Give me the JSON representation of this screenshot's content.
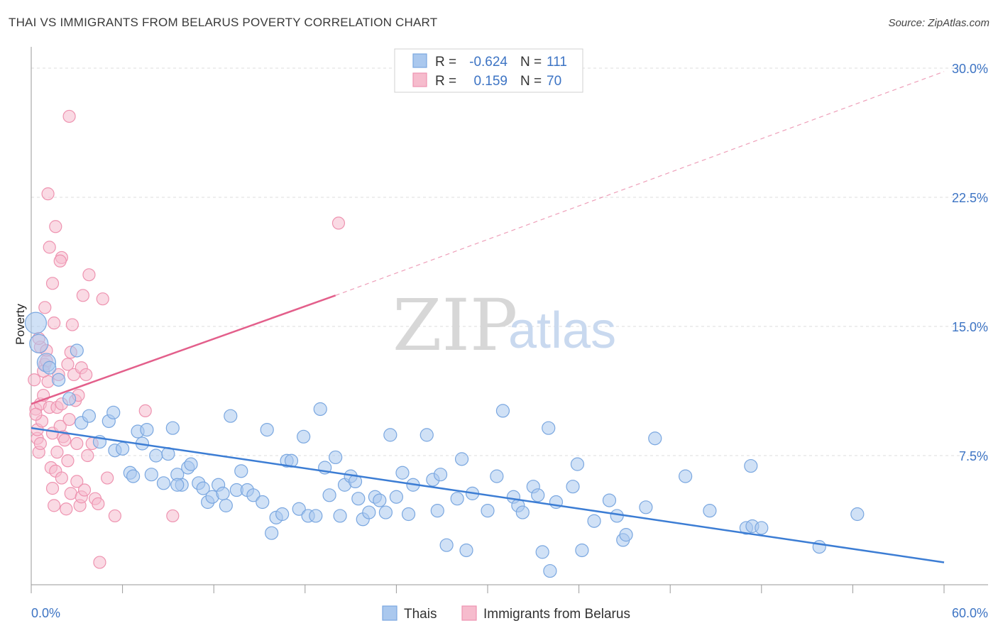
{
  "title": "THAI VS IMMIGRANTS FROM BELARUS POVERTY CORRELATION CHART",
  "source": "Source: ZipAtlas.com",
  "watermark": {
    "zip": "ZIP",
    "atlas": "atlas"
  },
  "colors": {
    "thais_fill": "#aac8ee",
    "thais_stroke": "#7aa7e0",
    "thais_line": "#3c7dd4",
    "belarus_fill": "#f6bccd",
    "belarus_stroke": "#ee93b0",
    "belarus_line": "#e35f8b",
    "tick_text": "#3d74c4",
    "grid": "#dcdcdc",
    "axis": "#9a9a9a"
  },
  "stats": [
    {
      "r_label": "R =",
      "r_value": "-0.624",
      "n_label": "N =",
      "n_value": "111"
    },
    {
      "r_label": "R =",
      "r_value": "0.159",
      "n_label": "N =",
      "n_value": "70"
    }
  ],
  "chart_data": {
    "type": "scatter",
    "xlabel": "",
    "ylabel": "Poverty",
    "xlim": [
      0,
      60
    ],
    "ylim": [
      0,
      30
    ],
    "x_tick_labels": [
      "0.0%",
      "60.0%"
    ],
    "y_ticks": [
      7.5,
      15.0,
      22.5,
      30.0
    ],
    "y_tick_labels": [
      "7.5%",
      "15.0%",
      "22.5%",
      "30.0%"
    ],
    "grid": "horizontal dashed",
    "legend_position": "bottom-center",
    "series": [
      {
        "name": "Thais",
        "trend": {
          "x0": 0,
          "y0": 9.1,
          "x1": 60,
          "y1": 1.3,
          "extrapolated_from": null
        },
        "points": [
          [
            0.3,
            15.2
          ],
          [
            0.5,
            14.0
          ],
          [
            1.0,
            12.9
          ],
          [
            1.2,
            12.6
          ],
          [
            1.8,
            11.9
          ],
          [
            3.0,
            13.6
          ],
          [
            2.5,
            10.8
          ],
          [
            3.3,
            9.4
          ],
          [
            3.8,
            9.8
          ],
          [
            4.5,
            8.3
          ],
          [
            5.1,
            9.5
          ],
          [
            5.5,
            7.8
          ],
          [
            5.4,
            10.0
          ],
          [
            6.0,
            7.9
          ],
          [
            6.5,
            6.5
          ],
          [
            6.7,
            6.3
          ],
          [
            7.0,
            8.9
          ],
          [
            7.3,
            8.2
          ],
          [
            7.6,
            9.0
          ],
          [
            7.9,
            6.4
          ],
          [
            8.2,
            7.5
          ],
          [
            8.7,
            5.9
          ],
          [
            9.0,
            7.6
          ],
          [
            9.3,
            9.1
          ],
          [
            9.6,
            6.4
          ],
          [
            9.9,
            5.8
          ],
          [
            10.3,
            6.8
          ],
          [
            10.5,
            7.0
          ],
          [
            11.0,
            5.9
          ],
          [
            11.3,
            5.6
          ],
          [
            11.6,
            4.8
          ],
          [
            11.9,
            5.1
          ],
          [
            12.3,
            5.8
          ],
          [
            12.8,
            4.6
          ],
          [
            13.1,
            9.8
          ],
          [
            13.5,
            5.5
          ],
          [
            13.8,
            6.6
          ],
          [
            14.2,
            5.5
          ],
          [
            14.6,
            5.2
          ],
          [
            15.2,
            4.8
          ],
          [
            15.5,
            9.0
          ],
          [
            15.8,
            3.0
          ],
          [
            16.1,
            3.9
          ],
          [
            16.5,
            4.1
          ],
          [
            16.8,
            7.2
          ],
          [
            17.1,
            7.2
          ],
          [
            17.6,
            4.4
          ],
          [
            17.9,
            8.6
          ],
          [
            18.2,
            4.0
          ],
          [
            18.7,
            4.0
          ],
          [
            19.0,
            10.2
          ],
          [
            19.3,
            6.8
          ],
          [
            19.6,
            5.2
          ],
          [
            20.0,
            7.4
          ],
          [
            20.3,
            4.0
          ],
          [
            20.6,
            5.8
          ],
          [
            21.0,
            6.3
          ],
          [
            21.5,
            5.0
          ],
          [
            21.8,
            3.8
          ],
          [
            22.2,
            4.2
          ],
          [
            22.6,
            5.1
          ],
          [
            22.9,
            4.9
          ],
          [
            23.3,
            4.2
          ],
          [
            23.6,
            8.7
          ],
          [
            24.0,
            5.1
          ],
          [
            24.4,
            6.5
          ],
          [
            24.8,
            4.1
          ],
          [
            25.1,
            5.8
          ],
          [
            26.0,
            8.7
          ],
          [
            26.4,
            6.1
          ],
          [
            26.7,
            4.3
          ],
          [
            26.9,
            6.4
          ],
          [
            27.3,
            2.3
          ],
          [
            28.0,
            5.0
          ],
          [
            28.3,
            7.3
          ],
          [
            28.6,
            2.0
          ],
          [
            29.0,
            5.3
          ],
          [
            30.0,
            4.3
          ],
          [
            30.6,
            6.3
          ],
          [
            31.0,
            10.1
          ],
          [
            31.7,
            5.1
          ],
          [
            32.0,
            4.6
          ],
          [
            32.3,
            4.2
          ],
          [
            33.0,
            5.7
          ],
          [
            33.3,
            5.2
          ],
          [
            33.6,
            1.9
          ],
          [
            34.0,
            9.1
          ],
          [
            34.5,
            4.8
          ],
          [
            35.6,
            5.7
          ],
          [
            35.9,
            7.0
          ],
          [
            36.2,
            2.0
          ],
          [
            37.0,
            3.7
          ],
          [
            38.0,
            4.9
          ],
          [
            38.5,
            4.0
          ],
          [
            38.9,
            2.6
          ],
          [
            39.1,
            2.9
          ],
          [
            41.0,
            8.5
          ],
          [
            43.0,
            6.3
          ],
          [
            44.6,
            4.3
          ],
          [
            47.0,
            3.3
          ],
          [
            47.4,
            3.4
          ],
          [
            48.0,
            3.3
          ],
          [
            47.3,
            6.9
          ],
          [
            51.8,
            2.2
          ],
          [
            54.3,
            4.1
          ],
          [
            34.1,
            0.8
          ],
          [
            9.6,
            5.8
          ],
          [
            12.6,
            5.3
          ],
          [
            40.4,
            4.5
          ],
          [
            21.3,
            6.0
          ]
        ]
      },
      {
        "name": "Immigrants from Belarus",
        "trend": {
          "x0": 0,
          "y0": 10.5,
          "x1": 20,
          "y1": 16.8,
          "extrapolated_to": [
            60,
            29.8
          ]
        },
        "points": [
          [
            0.2,
            11.9
          ],
          [
            0.3,
            10.2
          ],
          [
            0.4,
            8.5
          ],
          [
            0.4,
            9.0
          ],
          [
            0.5,
            7.7
          ],
          [
            0.6,
            13.8
          ],
          [
            0.6,
            10.5
          ],
          [
            0.7,
            9.5
          ],
          [
            0.8,
            11.0
          ],
          [
            0.9,
            12.8
          ],
          [
            1.0,
            13.6
          ],
          [
            1.1,
            11.8
          ],
          [
            1.2,
            10.3
          ],
          [
            1.3,
            6.8
          ],
          [
            1.4,
            8.8
          ],
          [
            1.4,
            5.6
          ],
          [
            1.5,
            4.6
          ],
          [
            1.6,
            6.6
          ],
          [
            1.7,
            10.3
          ],
          [
            1.7,
            7.7
          ],
          [
            1.8,
            12.2
          ],
          [
            1.9,
            9.2
          ],
          [
            2.0,
            10.5
          ],
          [
            2.0,
            6.2
          ],
          [
            2.1,
            8.6
          ],
          [
            2.2,
            8.4
          ],
          [
            2.3,
            4.4
          ],
          [
            2.4,
            12.8
          ],
          [
            2.4,
            7.2
          ],
          [
            2.5,
            9.6
          ],
          [
            2.6,
            13.5
          ],
          [
            2.6,
            5.3
          ],
          [
            2.7,
            15.1
          ],
          [
            2.8,
            12.2
          ],
          [
            2.9,
            10.7
          ],
          [
            3.0,
            6.0
          ],
          [
            3.0,
            8.2
          ],
          [
            3.1,
            11.0
          ],
          [
            3.2,
            4.6
          ],
          [
            3.3,
            12.6
          ],
          [
            3.3,
            5.1
          ],
          [
            3.4,
            16.8
          ],
          [
            3.5,
            5.5
          ],
          [
            3.6,
            12.2
          ],
          [
            3.7,
            7.5
          ],
          [
            3.8,
            18.0
          ],
          [
            4.0,
            8.2
          ],
          [
            4.2,
            5.0
          ],
          [
            4.4,
            4.7
          ],
          [
            4.5,
            1.3
          ],
          [
            4.7,
            16.6
          ],
          [
            5.0,
            6.2
          ],
          [
            5.5,
            4.0
          ],
          [
            7.5,
            10.1
          ],
          [
            9.3,
            4.0
          ],
          [
            1.1,
            22.7
          ],
          [
            1.6,
            20.8
          ],
          [
            1.2,
            19.6
          ],
          [
            2.0,
            19.0
          ],
          [
            1.9,
            18.8
          ],
          [
            1.4,
            17.5
          ],
          [
            0.9,
            16.1
          ],
          [
            2.5,
            27.2
          ],
          [
            1.5,
            15.2
          ],
          [
            20.2,
            21.0
          ],
          [
            0.5,
            14.3
          ],
          [
            1.0,
            13.0
          ],
          [
            0.8,
            12.4
          ],
          [
            0.3,
            9.9
          ],
          [
            0.6,
            8.2
          ]
        ]
      }
    ]
  },
  "legend": {
    "items": [
      "Thais",
      "Immigrants from Belarus"
    ]
  }
}
